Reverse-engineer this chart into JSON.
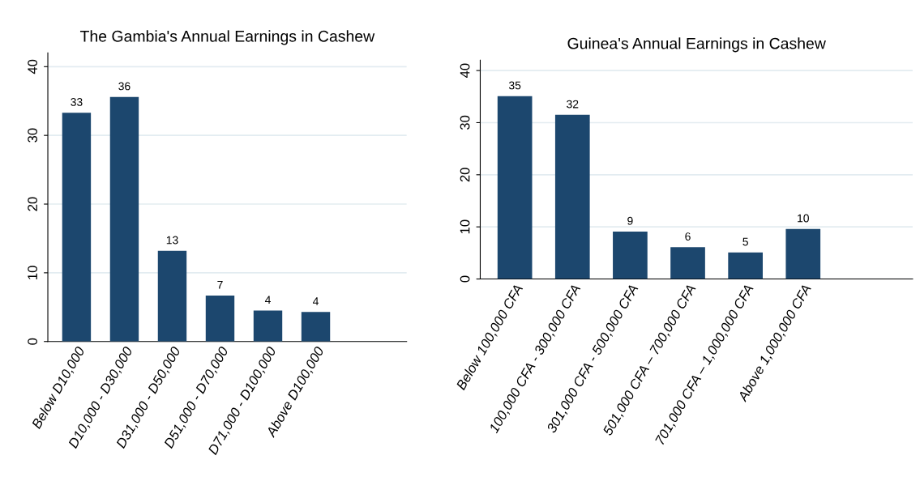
{
  "chart_data": [
    {
      "type": "bar",
      "title": "The Gambia's Annual Earnings in Cashew",
      "categories": [
        "Below D10,000",
        "D10,000 - D30,000",
        "D31,000 - D50,000",
        "D51,000 - D70,000",
        "D71,000 - D100,000",
        "Above D100,000"
      ],
      "values": [
        33.3,
        35.6,
        13.2,
        6.7,
        4.5,
        4.3
      ],
      "value_labels": [
        "33",
        "36",
        "13",
        "7",
        "4",
        "4"
      ],
      "color": "#1c476e",
      "ylim": [
        0,
        42
      ],
      "yticks": [
        0,
        10,
        20,
        30,
        40
      ],
      "grid": "y",
      "legend": false
    },
    {
      "type": "bar",
      "title": "Guinea's Annual Earnings in Cashew",
      "categories": [
        "Below 100,000 CFA",
        "100,000 CFA - 300,000 CFA",
        "301,000 CFA - 500,000 CFA",
        "501,000 CFA – 700,000 CFA",
        "701,000 CFA – 1,000,000 CFA",
        "Above 1,000,000 CFA"
      ],
      "values": [
        35.1,
        31.5,
        9.1,
        6.1,
        5.1,
        9.6
      ],
      "value_labels": [
        "35",
        "32",
        "9",
        "6",
        "5",
        "10"
      ],
      "color": "#1c476e",
      "ylim": [
        0,
        42
      ],
      "yticks": [
        0,
        10,
        20,
        30,
        40
      ],
      "grid": "y",
      "legend": false
    }
  ]
}
